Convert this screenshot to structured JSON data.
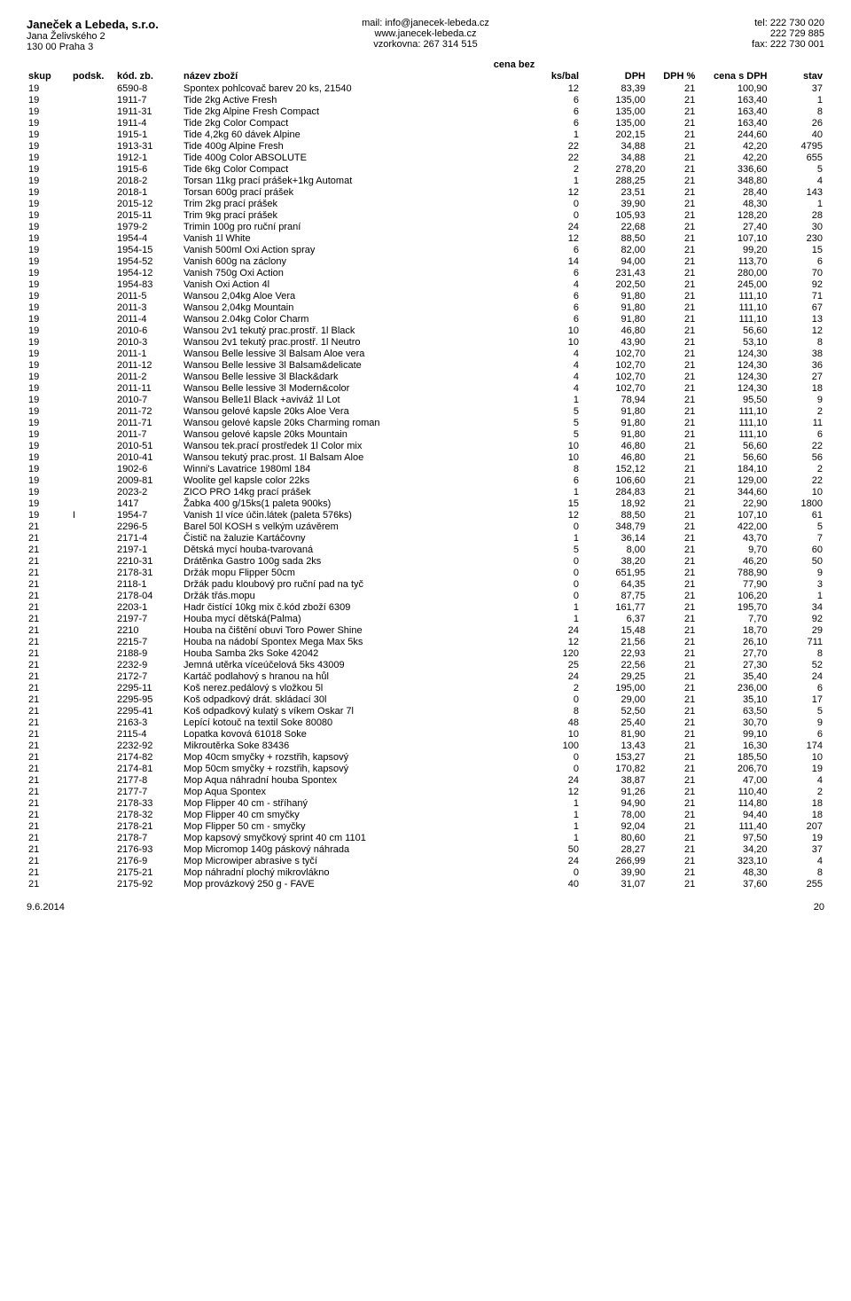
{
  "header": {
    "company": "Janeček a Lebeda, s.r.o.",
    "addr1": "Jana Želivského 2",
    "addr2": "130 00 Praha 3",
    "mail": "mail: info@janecek-lebeda.cz",
    "web": "www.janecek-lebeda.cz",
    "vzorkovna": "vzorkovna: 267 314 515",
    "tel": "tel: 222 730 020",
    "tel2": "222 729 885",
    "fax": "fax: 222 730 001"
  },
  "cena_bez": "cena bez",
  "columns": {
    "skup": "skup",
    "podsk": "podsk.",
    "kod": "kód. zb.",
    "nazev": "název zboží",
    "ksbal": "ks/bal",
    "dph": "DPH",
    "dphp": "DPH %",
    "cenas": "cena s DPH",
    "stav": "stav"
  },
  "rows": [
    [
      "19",
      "",
      "6590-8",
      "Spontex pohlcovač barev 20 ks, 21540",
      "12",
      "83,39",
      "21",
      "100,90",
      "37"
    ],
    [
      "19",
      "",
      "1911-7",
      "Tide 2kg Active Fresh",
      "6",
      "135,00",
      "21",
      "163,40",
      "1"
    ],
    [
      "19",
      "",
      "1911-31",
      "Tide 2kg Alpine Fresh Compact",
      "6",
      "135,00",
      "21",
      "163,40",
      "8"
    ],
    [
      "19",
      "",
      "1911-4",
      "Tide 2kg Color Compact",
      "6",
      "135,00",
      "21",
      "163,40",
      "26"
    ],
    [
      "19",
      "",
      "1915-1",
      "Tide 4,2kg 60 dávek Alpine",
      "1",
      "202,15",
      "21",
      "244,60",
      "40"
    ],
    [
      "19",
      "",
      "1913-31",
      "Tide 400g Alpine Fresh",
      "22",
      "34,88",
      "21",
      "42,20",
      "4795"
    ],
    [
      "19",
      "",
      "1912-1",
      "Tide 400g Color ABSOLUTE",
      "22",
      "34,88",
      "21",
      "42,20",
      "655"
    ],
    [
      "19",
      "",
      "1915-6",
      "Tide 6kg Color Compact",
      "2",
      "278,20",
      "21",
      "336,60",
      "5"
    ],
    [
      "19",
      "",
      "2018-2",
      "Torsan 11kg prací prášek+1kg Automat",
      "1",
      "288,25",
      "21",
      "348,80",
      "4"
    ],
    [
      "19",
      "",
      "2018-1",
      "Torsan 600g prací prášek",
      "12",
      "23,51",
      "21",
      "28,40",
      "143"
    ],
    [
      "19",
      "",
      "2015-12",
      "Trim 2kg prací prášek",
      "0",
      "39,90",
      "21",
      "48,30",
      "1"
    ],
    [
      "19",
      "",
      "2015-11",
      "Trim 9kg prací prášek",
      "0",
      "105,93",
      "21",
      "128,20",
      "28"
    ],
    [
      "19",
      "",
      "1979-2",
      "Trimin 100g pro ruční praní",
      "24",
      "22,68",
      "21",
      "27,40",
      "30"
    ],
    [
      "19",
      "",
      "1954-4",
      "Vanish 1l White",
      "12",
      "88,50",
      "21",
      "107,10",
      "230"
    ],
    [
      "19",
      "",
      "1954-15",
      "Vanish 500ml Oxi Action spray",
      "6",
      "82,00",
      "21",
      "99,20",
      "15"
    ],
    [
      "19",
      "",
      "1954-52",
      "Vanish 600g na záclony",
      "14",
      "94,00",
      "21",
      "113,70",
      "6"
    ],
    [
      "19",
      "",
      "1954-12",
      "Vanish 750g Oxi Action",
      "6",
      "231,43",
      "21",
      "280,00",
      "70"
    ],
    [
      "19",
      "",
      "1954-83",
      "Vanish Oxi Action 4l",
      "4",
      "202,50",
      "21",
      "245,00",
      "92"
    ],
    [
      "19",
      "",
      "2011-5",
      "Wansou 2,04kg Aloe Vera",
      "6",
      "91,80",
      "21",
      "111,10",
      "71"
    ],
    [
      "19",
      "",
      "2011-3",
      "Wansou 2,04kg Mountain",
      "6",
      "91,80",
      "21",
      "111,10",
      "67"
    ],
    [
      "19",
      "",
      "2011-4",
      "Wansou 2.04kg Color Charm",
      "6",
      "91,80",
      "21",
      "111,10",
      "13"
    ],
    [
      "19",
      "",
      "2010-6",
      "Wansou 2v1 tekutý prac.prostř. 1l Black",
      "10",
      "46,80",
      "21",
      "56,60",
      "12"
    ],
    [
      "19",
      "",
      "2010-3",
      "Wansou 2v1 tekutý prac.prostř. 1l Neutro",
      "10",
      "43,90",
      "21",
      "53,10",
      "8"
    ],
    [
      "19",
      "",
      "2011-1",
      "Wansou Belle lessive 3l Balsam Aloe vera",
      "4",
      "102,70",
      "21",
      "124,30",
      "38"
    ],
    [
      "19",
      "",
      "2011-12",
      "Wansou Belle lessive 3l Balsam&delicate",
      "4",
      "102,70",
      "21",
      "124,30",
      "36"
    ],
    [
      "19",
      "",
      "2011-2",
      "Wansou Belle lessive 3l Black&dark",
      "4",
      "102,70",
      "21",
      "124,30",
      "27"
    ],
    [
      "19",
      "",
      "2011-11",
      "Wansou Belle lessive 3l Modern&color",
      "4",
      "102,70",
      "21",
      "124,30",
      "18"
    ],
    [
      "19",
      "",
      "2010-7",
      "Wansou Belle1l Black +aviváž 1l Lot",
      "1",
      "78,94",
      "21",
      "95,50",
      "9"
    ],
    [
      "19",
      "",
      "2011-72",
      "Wansou gelové kapsle 20ks Aloe Vera",
      "5",
      "91,80",
      "21",
      "111,10",
      "2"
    ],
    [
      "19",
      "",
      "2011-71",
      "Wansou gelové kapsle 20ks Charming roman",
      "5",
      "91,80",
      "21",
      "111,10",
      "11"
    ],
    [
      "19",
      "",
      "2011-7",
      "Wansou gelové kapsle 20ks Mountain",
      "5",
      "91,80",
      "21",
      "111,10",
      "6"
    ],
    [
      "19",
      "",
      "2010-51",
      "Wansou tek.prací prostředek 1l Color mix",
      "10",
      "46,80",
      "21",
      "56,60",
      "22"
    ],
    [
      "19",
      "",
      "2010-41",
      "Wansou tekutý prac.prost. 1l Balsam Aloe",
      "10",
      "46,80",
      "21",
      "56,60",
      "56"
    ],
    [
      "19",
      "",
      "1902-6",
      "Winni's Lavatrice 1980ml  184",
      "8",
      "152,12",
      "21",
      "184,10",
      "2"
    ],
    [
      "19",
      "",
      "2009-81",
      "Woolite gel kapsle color 22ks",
      "6",
      "106,60",
      "21",
      "129,00",
      "22"
    ],
    [
      "19",
      "",
      "2023-2",
      "ZICO PRO 14kg prací prášek",
      "1",
      "284,83",
      "21",
      "344,60",
      "10"
    ],
    [
      "19",
      "",
      "1417",
      "Žabka 400 g/15ks(1 paleta 900ks)",
      "15",
      "18,92",
      "21",
      "22,90",
      "1800"
    ],
    [
      "19",
      "I",
      "1954-7",
      "Vanish 1l více účin.látek (paleta 576ks)",
      "12",
      "88,50",
      "21",
      "107,10",
      "61"
    ],
    [
      "21",
      "",
      "2296-5",
      "Barel 50l KOSH s velkým uzávěrem",
      "0",
      "348,79",
      "21",
      "422,00",
      "5"
    ],
    [
      "21",
      "",
      "2171-4",
      "Čistič na žaluzie Kartáčovny",
      "1",
      "36,14",
      "21",
      "43,70",
      "7"
    ],
    [
      "21",
      "",
      "2197-1",
      "Dětská mycí houba-tvarovaná",
      "5",
      "8,00",
      "21",
      "9,70",
      "60"
    ],
    [
      "21",
      "",
      "2210-31",
      "Drátěnka Gastro 100g sada 2ks",
      "0",
      "38,20",
      "21",
      "46,20",
      "50"
    ],
    [
      "21",
      "",
      "2178-31",
      "Držák mopu Flipper 50cm",
      "0",
      "651,95",
      "21",
      "788,90",
      "9"
    ],
    [
      "21",
      "",
      "2118-1",
      "Držák padu kloubový pro ruční pad na tyč",
      "0",
      "64,35",
      "21",
      "77,90",
      "3"
    ],
    [
      "21",
      "",
      "2178-04",
      "Držák třás.mopu",
      "0",
      "87,75",
      "21",
      "106,20",
      "1"
    ],
    [
      "21",
      "",
      "2203-1",
      "Hadr čistící 10kg mix č.kód zboží 6309",
      "1",
      "161,77",
      "21",
      "195,70",
      "34"
    ],
    [
      "21",
      "",
      "2197-7",
      "Houba mycí dětská(Palma)",
      "1",
      "6,37",
      "21",
      "7,70",
      "92"
    ],
    [
      "21",
      "",
      "2210",
      "Houba na čištění obuvi Toro Power Shine",
      "24",
      "15,48",
      "21",
      "18,70",
      "29"
    ],
    [
      "21",
      "",
      "2215-7",
      "Houba na nádobí Spontex Mega Max 5ks",
      "12",
      "21,56",
      "21",
      "26,10",
      "711"
    ],
    [
      "21",
      "",
      "2188-9",
      "Houba Samba 2ks Soke 42042",
      "120",
      "22,93",
      "21",
      "27,70",
      "8"
    ],
    [
      "21",
      "",
      "2232-9",
      "Jemná utěrka víceúčelová 5ks  43009",
      "25",
      "22,56",
      "21",
      "27,30",
      "52"
    ],
    [
      "21",
      "",
      "2172-7",
      "Kartáč podlahový s hranou na hůl",
      "24",
      "29,25",
      "21",
      "35,40",
      "24"
    ],
    [
      "21",
      "",
      "2295-11",
      "Koš nerez.pedálový s vložkou 5l",
      "2",
      "195,00",
      "21",
      "236,00",
      "6"
    ],
    [
      "21",
      "",
      "2295-95",
      "Koš odpadkový drát. skládací 30l",
      "0",
      "29,00",
      "21",
      "35,10",
      "17"
    ],
    [
      "21",
      "",
      "2295-41",
      "Koš odpadkový kulatý s víkem Oskar 7l",
      "8",
      "52,50",
      "21",
      "63,50",
      "5"
    ],
    [
      "21",
      "",
      "2163-3",
      "Lepící kotouč na textil Soke 80080",
      "48",
      "25,40",
      "21",
      "30,70",
      "9"
    ],
    [
      "21",
      "",
      "2115-4",
      "Lopatka kovová 61018 Soke",
      "10",
      "81,90",
      "21",
      "99,10",
      "6"
    ],
    [
      "21",
      "",
      "2232-92",
      "Mikroutěrka Soke 83436",
      "100",
      "13,43",
      "21",
      "16,30",
      "174"
    ],
    [
      "21",
      "",
      "2174-82",
      "Mop 40cm smyčky + rozstřih, kapsový",
      "0",
      "153,27",
      "21",
      "185,50",
      "10"
    ],
    [
      "21",
      "",
      "2174-81",
      "Mop 50cm smyčky + rozstřih, kapsový",
      "0",
      "170,82",
      "21",
      "206,70",
      "19"
    ],
    [
      "21",
      "",
      "2177-8",
      "Mop Aqua náhradní houba Spontex",
      "24",
      "38,87",
      "21",
      "47,00",
      "4"
    ],
    [
      "21",
      "",
      "2177-7",
      "Mop Aqua Spontex",
      "12",
      "91,26",
      "21",
      "110,40",
      "2"
    ],
    [
      "21",
      "",
      "2178-33",
      "Mop Flipper 40 cm - stříhaný",
      "1",
      "94,90",
      "21",
      "114,80",
      "18"
    ],
    [
      "21",
      "",
      "2178-32",
      "Mop Flipper 40 cm smyčky",
      "1",
      "78,00",
      "21",
      "94,40",
      "18"
    ],
    [
      "21",
      "",
      "2178-21",
      "Mop Flipper 50 cm - smyčky",
      "1",
      "92,04",
      "21",
      "111,40",
      "207"
    ],
    [
      "21",
      "",
      "2178-7",
      "Mop kapsový smyčkový sprint 40 cm 1101",
      "1",
      "80,60",
      "21",
      "97,50",
      "19"
    ],
    [
      "21",
      "",
      "2176-93",
      "Mop Micromop 140g páskový náhrada",
      "50",
      "28,27",
      "21",
      "34,20",
      "37"
    ],
    [
      "21",
      "",
      "2176-9",
      "Mop Microwiper abrasive s tyčí",
      "24",
      "266,99",
      "21",
      "323,10",
      "4"
    ],
    [
      "21",
      "",
      "2175-21",
      "Mop náhradní plochý mikrovlákno",
      "0",
      "39,90",
      "21",
      "48,30",
      "8"
    ],
    [
      "21",
      "",
      "2175-92",
      "Mop provázkový 250 g - FAVE",
      "40",
      "31,07",
      "21",
      "37,60",
      "255"
    ]
  ],
  "footer": {
    "date": "9.6.2014",
    "page": "20"
  }
}
